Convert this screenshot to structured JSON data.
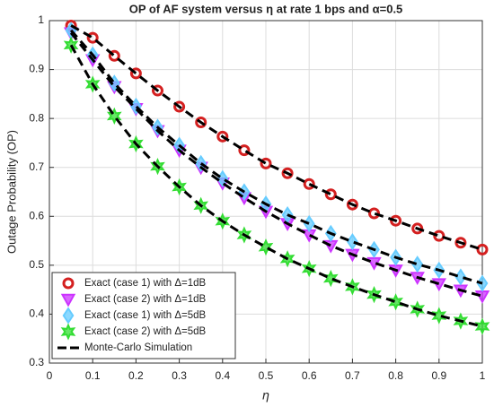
{
  "chart_data": {
    "type": "line",
    "title": "OP of AF system versus η at rate 1 bps and α=0.5",
    "xlabel": "η",
    "ylabel": "Outage Probability (OP)",
    "x": [
      0.05,
      0.1,
      0.15,
      0.2,
      0.25,
      0.3,
      0.35,
      0.4,
      0.45,
      0.5,
      0.55,
      0.6,
      0.65,
      0.7,
      0.75,
      0.8,
      0.85,
      0.9,
      0.95,
      1.0
    ],
    "series": [
      {
        "name": "Exact (case 1) with Δ=1dB",
        "color": "#d42020",
        "marker": "circle",
        "values": [
          0.99,
          0.965,
          0.928,
          0.892,
          0.857,
          0.824,
          0.792,
          0.763,
          0.735,
          0.708,
          0.688,
          0.666,
          0.645,
          0.624,
          0.606,
          0.591,
          0.575,
          0.56,
          0.546,
          0.532
        ]
      },
      {
        "name": "Exact (case 2) with Δ=1dB",
        "color": "#cc33ff",
        "marker": "triangle-down",
        "values": [
          0.975,
          0.92,
          0.865,
          0.82,
          0.775,
          0.735,
          0.7,
          0.668,
          0.638,
          0.61,
          0.585,
          0.562,
          0.54,
          0.522,
          0.505,
          0.49,
          0.475,
          0.462,
          0.449,
          0.437
        ]
      },
      {
        "name": "Exact (case 1) with Δ=5dB",
        "color": "#66ccff",
        "marker": "diamond",
        "values": [
          0.98,
          0.93,
          0.872,
          0.825,
          0.782,
          0.745,
          0.708,
          0.677,
          0.65,
          0.625,
          0.603,
          0.585,
          0.565,
          0.548,
          0.532,
          0.516,
          0.502,
          0.49,
          0.476,
          0.463
        ]
      },
      {
        "name": "Exact (case 2) with Δ=5dB",
        "color": "#33dd33",
        "marker": "hexagram",
        "values": [
          0.95,
          0.87,
          0.805,
          0.748,
          0.702,
          0.66,
          0.622,
          0.59,
          0.562,
          0.537,
          0.513,
          0.493,
          0.473,
          0.456,
          0.44,
          0.425,
          0.41,
          0.397,
          0.386,
          0.375
        ]
      }
    ],
    "simulation": {
      "name": "Monte-Carlo Simulation",
      "color": "#000000"
    },
    "xlim": [
      0,
      1
    ],
    "ylim": [
      0.3,
      1
    ],
    "xticks": [
      0,
      0.1,
      0.2,
      0.3,
      0.4,
      0.5,
      0.6,
      0.7,
      0.8,
      0.9,
      1
    ],
    "yticks": [
      0.3,
      0.4,
      0.5,
      0.6,
      0.7,
      0.8,
      0.9,
      1
    ],
    "grid": true,
    "legend": "lower left"
  }
}
